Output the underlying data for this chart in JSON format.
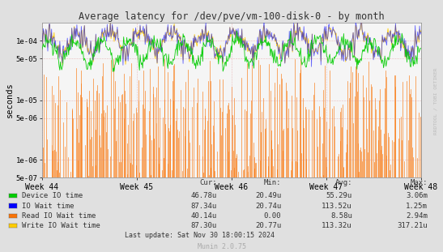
{
  "title": "Average latency for /dev/pve/vm-100-disk-0 - by month",
  "ylabel": "seconds",
  "background_color": "#e0e0e0",
  "plot_bg_color": "#f5f5f5",
  "week_labels": [
    "Week 44",
    "Week 45",
    "Week 46",
    "Week 47",
    "Week 48"
  ],
  "ylim_log_min": 5e-07,
  "ylim_log_max": 0.0002,
  "yticks": [
    5e-07,
    1e-06,
    5e-06,
    1e-05,
    5e-05,
    0.0001
  ],
  "legend_items": [
    {
      "label": "Device IO time",
      "color": "#00cc00"
    },
    {
      "label": "IO Wait time",
      "color": "#0000ff"
    },
    {
      "label": "Read IO Wait time",
      "color": "#f97306"
    },
    {
      "label": "Write IO Wait time",
      "color": "#ffcc00"
    }
  ],
  "table_data": [
    [
      "Device IO time",
      "46.78u",
      "20.49u",
      "55.29u",
      "3.06m"
    ],
    [
      "IO Wait time",
      "87.34u",
      "20.74u",
      "113.52u",
      "1.25m"
    ],
    [
      "Read IO Wait time",
      "40.14u",
      "0.00",
      "8.58u",
      "2.94m"
    ],
    [
      "Write IO Wait time",
      "87.30u",
      "20.77u",
      "113.32u",
      "317.21u"
    ]
  ],
  "last_update": "Last update: Sat Nov 30 18:00:15 2024",
  "munin_version": "Munin 2.0.75",
  "watermark": "RRDTOOL / TOBI OETIKER",
  "n_points": 600,
  "seed": 42
}
